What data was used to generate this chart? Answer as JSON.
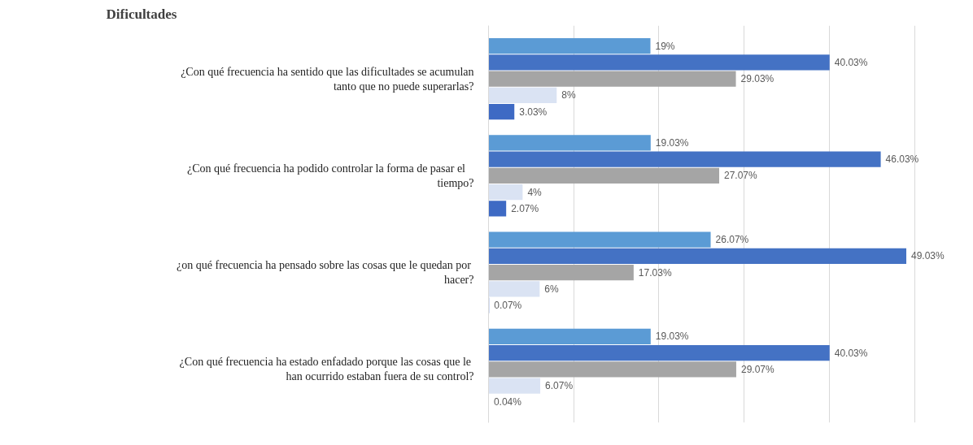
{
  "chart_data": {
    "type": "bar",
    "orientation": "horizontal",
    "title": "Dificultades",
    "categories": [
      "¿Con qué frecuencia ha sentido que las dificultades se acumulan tanto que no puede superarlas?",
      "¿Con qué frecuencia ha podido controlar la forma  de  pasar  el tiempo?",
      "¿on qué frecuencia ha  pensado sobre las cosas que le quedan por hacer?",
      "¿Con qué frecuencia ha estado enfadado porque  las cosas que le han ocurrido estaban fuera de su control?"
    ],
    "series": [
      {
        "color": "#5b9bd5",
        "values": [
          19,
          19.03,
          26.07,
          19.03
        ],
        "value_labels": [
          "19%",
          "19.03%",
          "26.07%",
          "19.03%"
        ]
      },
      {
        "color": "#4472c4",
        "values": [
          40.03,
          46.03,
          49.03,
          40.03
        ],
        "value_labels": [
          "40.03%",
          "46.03%",
          "49.03%",
          "40.03%"
        ]
      },
      {
        "color": "#a5a5a5",
        "values": [
          29.03,
          27.07,
          17.03,
          29.07
        ],
        "value_labels": [
          "29.03%",
          "27.07%",
          "17.03%",
          "29.07%"
        ]
      },
      {
        "color": "#dae3f3",
        "values": [
          8,
          4,
          6,
          6.07
        ],
        "value_labels": [
          "8%",
          "4%",
          "6%",
          "6.07%"
        ]
      },
      {
        "color": "#3e6ac4",
        "values": [
          3.03,
          2.07,
          0.07,
          0.04
        ],
        "value_labels": [
          "3.03%",
          "2.07%",
          "0.07%",
          "0.04%"
        ]
      }
    ],
    "tick_labels": "y",
    "grid": "x"
  }
}
